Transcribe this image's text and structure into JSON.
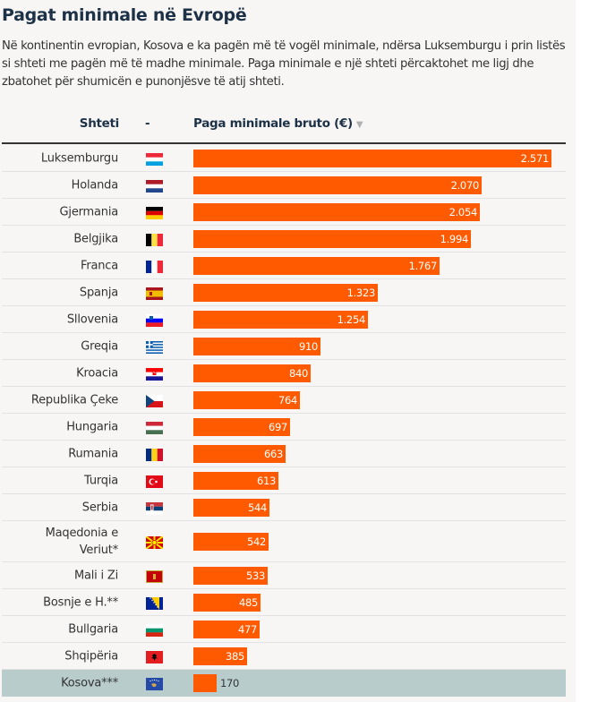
{
  "title": "Pagat minimale në Evropë",
  "description": "Në kontinentin evropian, Kosova e ka pagën më të vogël minimale, ndërsa Luksemburgu i prin listës si shteti me pagën më të madhe minimale. Paga minimale e një shteti përcaktohet me ligj dhe zbatohet për shumicën e punonjësve të atij shteti.",
  "table": {
    "headers": {
      "country": "Shteti",
      "flag": "-",
      "wage": "Paga minimale bruto (€)",
      "sort_icon": "▼"
    },
    "accent_color": "#ff5a00",
    "highlight_color": "#b8cccc"
  },
  "chart_data": {
    "type": "bar",
    "orientation": "horizontal",
    "title": "Pagat minimale në Evropë",
    "xlabel": "Paga minimale bruto (€)",
    "ylabel": "Shteti",
    "xlim": [
      0,
      2571
    ],
    "categories": [
      "Luksemburgu",
      "Holanda",
      "Gjermania",
      "Belgjika",
      "Franca",
      "Spanja",
      "Sllovenia",
      "Greqia",
      "Kroacia",
      "Republika Çeke",
      "Hungaria",
      "Rumania",
      "Turqia",
      "Serbia",
      "Maqedonia e\nVeriut*",
      "Mali i Zi",
      "Bosnje e H.**",
      "Bullgaria",
      "Shqipëria",
      "Kosova***"
    ],
    "values": [
      2571,
      2070,
      2054,
      1994,
      1767,
      1323,
      1254,
      910,
      840,
      764,
      697,
      663,
      613,
      544,
      542,
      533,
      485,
      477,
      385,
      170
    ],
    "labels": [
      "2.571",
      "2.070",
      "2.054",
      "1.994",
      "1.767",
      "1.323",
      "1.254",
      "910",
      "840",
      "764",
      "697",
      "663",
      "613",
      "544",
      "542",
      "533",
      "485",
      "477",
      "385",
      "170"
    ],
    "flags": [
      "luxembourg",
      "netherlands",
      "germany",
      "belgium",
      "france",
      "spain",
      "slovenia",
      "greece",
      "croatia",
      "czech-republic",
      "hungary",
      "romania",
      "turkey",
      "serbia",
      "north-macedonia",
      "montenegro",
      "bosnia",
      "bulgaria",
      "albania",
      "kosovo"
    ],
    "highlighted": [
      "Kosova***"
    ]
  }
}
